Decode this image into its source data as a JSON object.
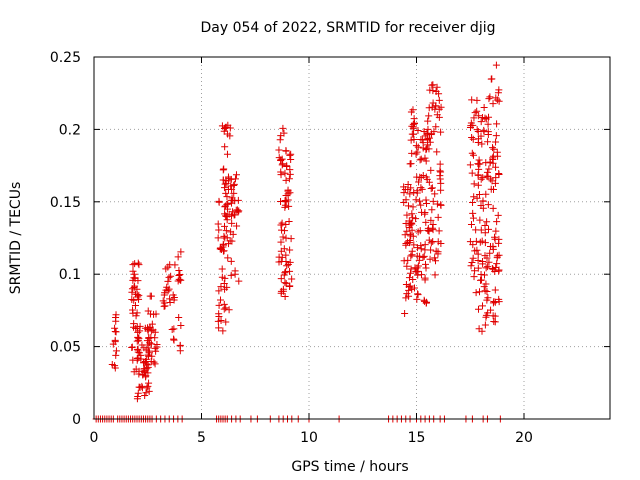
{
  "chart_data": {
    "type": "scatter",
    "title": "Day 054 of 2022, SRMTID for receiver djig",
    "xlabel": "GPS time / hours",
    "ylabel": "SRMTID / TECUs",
    "xlim": [
      0,
      24
    ],
    "ylim": [
      0,
      0.25
    ],
    "x_ticks": [
      0,
      5,
      10,
      15,
      20
    ],
    "y_ticks": [
      0,
      0.05,
      0.1,
      0.15,
      0.2,
      0.25
    ],
    "x_tick_labels": [
      "0",
      "5",
      "10",
      "15",
      "20"
    ],
    "y_tick_labels": [
      "0",
      "0.05",
      "0.1",
      "0.15",
      "0.2",
      "0.25"
    ],
    "grid": true,
    "marker": "plus",
    "color": "#e00000",
    "clusters": [
      {
        "x_range": [
          0.85,
          1.05
        ],
        "y_range": [
          0.033,
          0.078
        ],
        "count": 14
      },
      {
        "x_range": [
          1.75,
          2.1
        ],
        "y_range": [
          0.028,
          0.108
        ],
        "count": 40
      },
      {
        "x_range": [
          2.0,
          2.6
        ],
        "y_range": [
          0.014,
          0.065
        ],
        "count": 60
      },
      {
        "x_range": [
          2.5,
          2.95
        ],
        "y_range": [
          0.035,
          0.085
        ],
        "count": 28
      },
      {
        "x_range": [
          3.2,
          3.6
        ],
        "y_range": [
          0.07,
          0.108
        ],
        "count": 18
      },
      {
        "x_range": [
          3.6,
          4.05
        ],
        "y_range": [
          0.046,
          0.116
        ],
        "count": 22
      },
      {
        "x_range": [
          5.75,
          6.3
        ],
        "y_range": [
          0.059,
          0.16
        ],
        "count": 45
      },
      {
        "x_range": [
          5.95,
          6.4
        ],
        "y_range": [
          0.12,
          0.204
        ],
        "count": 35
      },
      {
        "x_range": [
          6.35,
          6.75
        ],
        "y_range": [
          0.088,
          0.17
        ],
        "count": 30
      },
      {
        "x_range": [
          8.6,
          8.95
        ],
        "y_range": [
          0.083,
          0.204
        ],
        "count": 40
      },
      {
        "x_range": [
          8.85,
          9.2
        ],
        "y_range": [
          0.09,
          0.185
        ],
        "count": 35
      },
      {
        "x_range": [
          14.4,
          14.8
        ],
        "y_range": [
          0.067,
          0.165
        ],
        "count": 40
      },
      {
        "x_range": [
          14.7,
          15.1
        ],
        "y_range": [
          0.085,
          0.216
        ],
        "count": 45
      },
      {
        "x_range": [
          15.0,
          15.5
        ],
        "y_range": [
          0.08,
          0.2
        ],
        "count": 55
      },
      {
        "x_range": [
          15.5,
          16.15
        ],
        "y_range": [
          0.098,
          0.231
        ],
        "count": 75
      },
      {
        "x_range": [
          17.5,
          17.95
        ],
        "y_range": [
          0.08,
          0.222
        ],
        "count": 45
      },
      {
        "x_range": [
          17.85,
          18.35
        ],
        "y_range": [
          0.06,
          0.216
        ],
        "count": 60
      },
      {
        "x_range": [
          18.25,
          18.85
        ],
        "y_range": [
          0.065,
          0.245
        ],
        "count": 75
      }
    ],
    "zero_points_x": [
      0.1,
      0.2,
      0.3,
      0.4,
      0.5,
      0.6,
      0.7,
      0.8,
      0.9,
      1.1,
      1.2,
      1.3,
      1.4,
      1.5,
      1.6,
      1.7,
      1.8,
      1.9,
      2.0,
      2.1,
      2.2,
      2.3,
      2.4,
      2.5,
      2.6,
      2.7,
      2.9,
      3.1,
      3.3,
      3.5,
      3.7,
      3.9,
      4.1,
      5.7,
      5.8,
      5.9,
      6.0,
      6.1,
      6.2,
      6.4,
      6.6,
      6.8,
      7.3,
      7.6,
      8.2,
      8.6,
      8.8,
      9.0,
      9.2,
      9.5,
      10.0,
      11.4,
      13.7,
      13.9,
      14.1,
      14.3,
      14.5,
      14.7,
      15.0,
      15.2,
      15.4,
      15.6,
      15.8,
      16.1,
      16.3,
      17.3,
      17.6,
      18.1,
      18.3,
      18.9
    ]
  }
}
